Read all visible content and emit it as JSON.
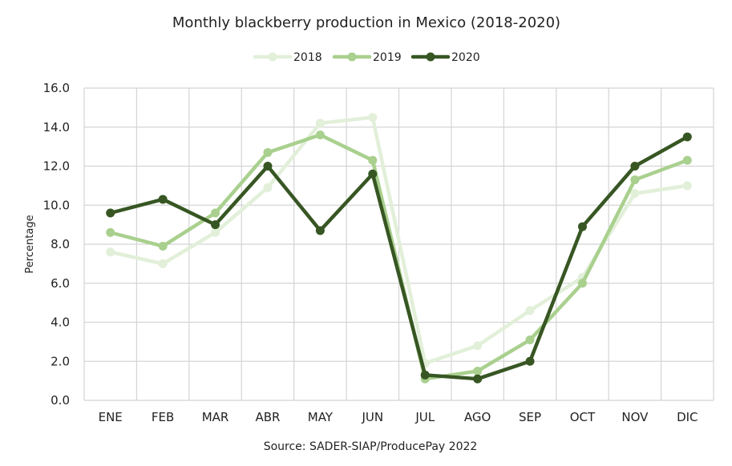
{
  "chart_data": {
    "type": "line",
    "title": "Monthly blackberry production in Mexico (2018-2020)",
    "xlabel": "",
    "ylabel": "Percentage",
    "source": "Source: SADER-SIAP/ProducePay 2022",
    "categories": [
      "ENE",
      "FEB",
      "MAR",
      "ABR",
      "MAY",
      "JUN",
      "JUL",
      "AGO",
      "SEP",
      "OCT",
      "NOV",
      "DIC"
    ],
    "ylim": [
      0,
      16
    ],
    "yticks": [
      "0.0",
      "2.0",
      "4.0",
      "6.0",
      "8.0",
      "10.0",
      "12.0",
      "14.0",
      "16.0"
    ],
    "grid": true,
    "legend_position": "top-center",
    "series": [
      {
        "name": "2018",
        "color": "#e2efd9",
        "values": [
          7.6,
          7.0,
          8.6,
          10.9,
          14.2,
          14.5,
          1.9,
          2.8,
          4.6,
          6.3,
          10.6,
          11.0
        ]
      },
      {
        "name": "2019",
        "color": "#a9d08e",
        "values": [
          8.6,
          7.9,
          9.6,
          12.7,
          13.6,
          12.3,
          1.1,
          1.5,
          3.1,
          6.0,
          11.3,
          12.3
        ]
      },
      {
        "name": "2020",
        "color": "#375623",
        "values": [
          9.6,
          10.3,
          9.0,
          12.0,
          8.7,
          11.6,
          1.3,
          1.1,
          2.0,
          8.9,
          12.0,
          13.5
        ]
      }
    ]
  }
}
